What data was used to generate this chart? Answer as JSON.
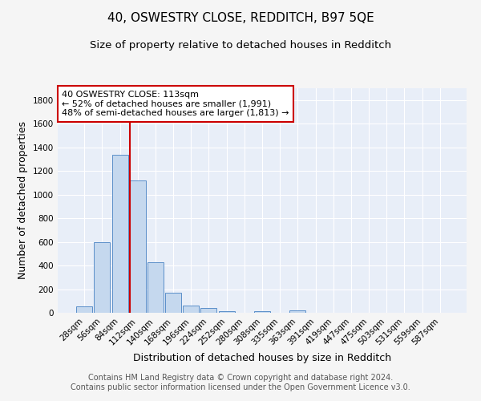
{
  "title": "40, OSWESTRY CLOSE, REDDITCH, B97 5QE",
  "subtitle": "Size of property relative to detached houses in Redditch",
  "xlabel": "Distribution of detached houses by size in Redditch",
  "ylabel": "Number of detached properties",
  "bar_labels": [
    "28sqm",
    "56sqm",
    "84sqm",
    "112sqm",
    "140sqm",
    "168sqm",
    "196sqm",
    "224sqm",
    "252sqm",
    "280sqm",
    "308sqm",
    "335sqm",
    "363sqm",
    "391sqm",
    "419sqm",
    "447sqm",
    "475sqm",
    "503sqm",
    "531sqm",
    "559sqm",
    "587sqm"
  ],
  "bar_values": [
    55,
    600,
    1340,
    1120,
    425,
    170,
    60,
    38,
    12,
    0,
    12,
    0,
    20,
    0,
    0,
    0,
    0,
    0,
    0,
    0,
    0
  ],
  "bar_color": "#c5d8ee",
  "bar_edge_color": "#5b8fc9",
  "background_color": "#e8eef8",
  "grid_color": "#ffffff",
  "property_line_color": "#cc0000",
  "annotation_text": "40 OSWESTRY CLOSE: 113sqm\n← 52% of detached houses are smaller (1,991)\n48% of semi-detached houses are larger (1,813) →",
  "annotation_box_color": "#ffffff",
  "annotation_box_edge_color": "#cc0000",
  "ylim": [
    0,
    1900
  ],
  "yticks": [
    0,
    200,
    400,
    600,
    800,
    1000,
    1200,
    1400,
    1600,
    1800
  ],
  "footer_line1": "Contains HM Land Registry data © Crown copyright and database right 2024.",
  "footer_line2": "Contains public sector information licensed under the Open Government Licence v3.0.",
  "title_fontsize": 11,
  "subtitle_fontsize": 9.5,
  "axis_label_fontsize": 9,
  "tick_fontsize": 7.5,
  "footer_fontsize": 7,
  "annotation_fontsize": 8
}
